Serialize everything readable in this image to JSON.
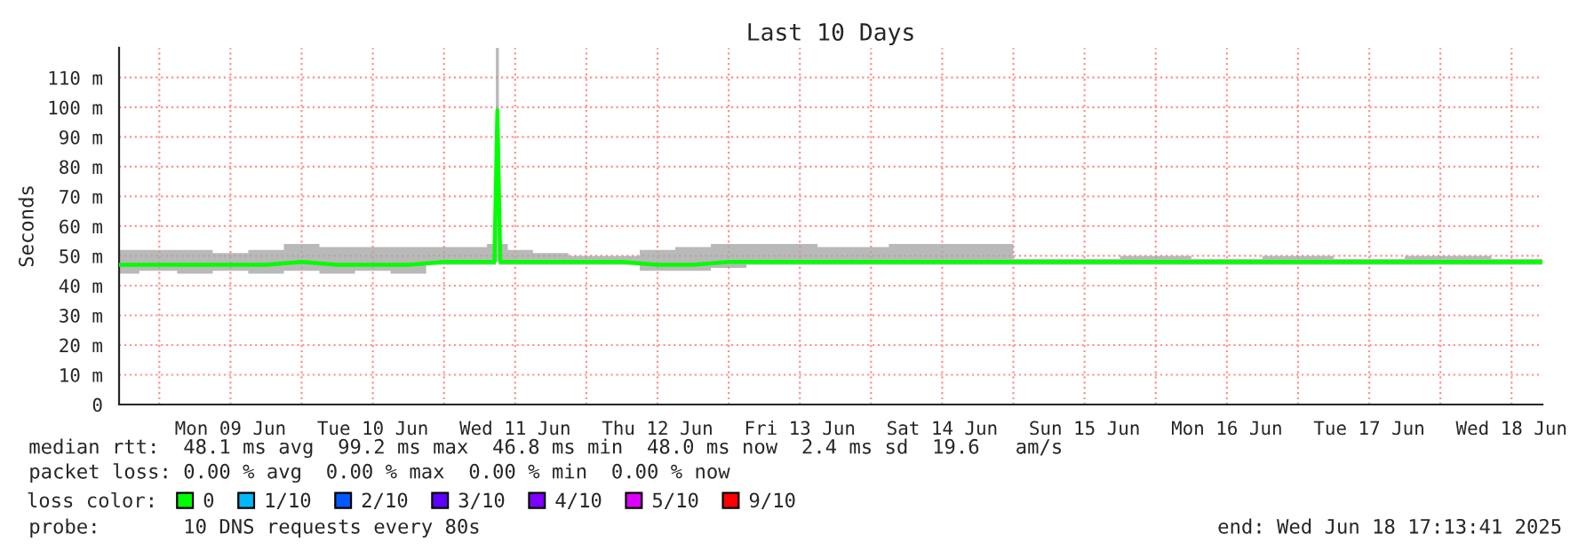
{
  "chart_data": {
    "type": "line",
    "title": "Last 10 Days",
    "ylabel": "Seconds",
    "x": [
      "2025-06-08T17:15",
      "2025-06-09T00:00",
      "2025-06-09T06:00",
      "2025-06-09T12:00",
      "2025-06-09T18:00",
      "2025-06-10T00:00",
      "2025-06-10T06:00",
      "2025-06-10T12:00",
      "2025-06-10T18:00",
      "2025-06-11T00:00",
      "2025-06-11T06:00",
      "2025-06-11T08:30",
      "2025-06-11T09:00",
      "2025-06-11T09:30",
      "2025-06-11T12:00",
      "2025-06-11T18:00",
      "2025-06-12T00:00",
      "2025-06-12T06:00",
      "2025-06-12T12:00",
      "2025-06-12T18:00",
      "2025-06-13T00:00",
      "2025-06-13T06:00",
      "2025-06-13T12:00",
      "2025-06-13T18:00",
      "2025-06-14T00:00",
      "2025-06-14T06:00",
      "2025-06-14T12:00",
      "2025-06-14T18:00",
      "2025-06-14T23:00",
      "2025-06-15T01:00",
      "2025-06-15T12:00",
      "2025-06-16T00:00",
      "2025-06-16T12:00",
      "2025-06-17T00:00",
      "2025-06-17T12:00",
      "2025-06-18T00:00",
      "2025-06-18T17:10"
    ],
    "series": [
      {
        "name": "0",
        "color": "#00ff00",
        "values": [
          47,
          47,
          47,
          47,
          47,
          48,
          47,
          47,
          47,
          48,
          48,
          48,
          99,
          48,
          48,
          48,
          48,
          48,
          47,
          47,
          48,
          48,
          48,
          48,
          48,
          48,
          48,
          48,
          48,
          48,
          48,
          48,
          48,
          48,
          48,
          48,
          48
        ],
        "lower": [
          44,
          45,
          44,
          45,
          44,
          45,
          44,
          45,
          44,
          47,
          47,
          47,
          48,
          47,
          47,
          47,
          47,
          47,
          45,
          45,
          46,
          47,
          47,
          47,
          47,
          47,
          47,
          47,
          47,
          47,
          47,
          47,
          47,
          47,
          47,
          47,
          47
        ],
        "upper": [
          52,
          52,
          52,
          51,
          52,
          54,
          53,
          53,
          53,
          53,
          53,
          54,
          120,
          54,
          52,
          51,
          50,
          50,
          52,
          53,
          54,
          54,
          54,
          53,
          53,
          54,
          54,
          54,
          54,
          49,
          49,
          50,
          49,
          50,
          49,
          50,
          49
        ]
      },
      {
        "name": "1/10",
        "color": "#00b8ff",
        "values": [
          null,
          null,
          null,
          null,
          null,
          null,
          null,
          null,
          null,
          null,
          null,
          null,
          null,
          null,
          null,
          null,
          null,
          null,
          null,
          null,
          null,
          null,
          null,
          null,
          null,
          null,
          null,
          null,
          null,
          null,
          null,
          null,
          null,
          null,
          null,
          null,
          null
        ]
      },
      {
        "name": "2/10",
        "color": "#0059ff",
        "values": [
          null,
          null,
          null,
          null,
          null,
          null,
          null,
          null,
          null,
          null,
          null,
          null,
          null,
          null,
          null,
          null,
          null,
          null,
          null,
          null,
          null,
          null,
          null,
          null,
          null,
          null,
          null,
          null,
          null,
          null,
          null,
          null,
          null,
          null,
          null,
          null,
          null
        ]
      },
      {
        "name": "3/10",
        "color": "#5e00ff",
        "values": [
          null,
          null,
          null,
          null,
          null,
          null,
          null,
          null,
          null,
          null,
          null,
          null,
          null,
          null,
          null,
          null,
          null,
          null,
          null,
          null,
          null,
          null,
          null,
          null,
          null,
          null,
          null,
          null,
          null,
          null,
          null,
          null,
          null,
          null,
          null,
          null,
          null
        ]
      },
      {
        "name": "4/10",
        "color": "#7e00ff",
        "values": [
          null,
          null,
          null,
          null,
          null,
          null,
          null,
          null,
          null,
          null,
          null,
          null,
          null,
          null,
          null,
          null,
          null,
          null,
          null,
          null,
          null,
          null,
          null,
          null,
          null,
          null,
          null,
          null,
          null,
          null,
          null,
          null,
          null,
          null,
          null,
          null,
          null
        ]
      },
      {
        "name": "5/10",
        "color": "#dd00ff",
        "values": [
          null,
          null,
          null,
          null,
          null,
          null,
          null,
          null,
          null,
          null,
          null,
          null,
          null,
          null,
          null,
          null,
          null,
          null,
          null,
          null,
          null,
          null,
          null,
          null,
          null,
          null,
          null,
          null,
          null,
          null,
          null,
          null,
          null,
          null,
          null,
          null,
          null
        ]
      },
      {
        "name": "9/10",
        "color": "#ff0000",
        "values": [
          null,
          null,
          null,
          null,
          null,
          null,
          null,
          null,
          null,
          null,
          null,
          null,
          null,
          null,
          null,
          null,
          null,
          null,
          null,
          null,
          null,
          null,
          null,
          null,
          null,
          null,
          null,
          null,
          null,
          null,
          null,
          null,
          null,
          null,
          null,
          null,
          null
        ]
      }
    ],
    "legend": "bottom",
    "legend_title": "loss color:",
    "grid": true,
    "xlim": [
      "2025-06-08T17:13",
      "2025-06-18T17:13"
    ],
    "xticks": [
      {
        "value": "2025-06-09T00:00",
        "label": null
      },
      {
        "value": "2025-06-09T12:00",
        "label": "Mon 09 Jun"
      },
      {
        "value": "2025-06-10T00:00",
        "label": null
      },
      {
        "value": "2025-06-10T12:00",
        "label": "Tue 10 Jun"
      },
      {
        "value": "2025-06-11T00:00",
        "label": null
      },
      {
        "value": "2025-06-11T12:00",
        "label": "Wed 11 Jun"
      },
      {
        "value": "2025-06-12T00:00",
        "label": null
      },
      {
        "value": "2025-06-12T12:00",
        "label": "Thu 12 Jun"
      },
      {
        "value": "2025-06-13T00:00",
        "label": null
      },
      {
        "value": "2025-06-13T12:00",
        "label": "Fri 13 Jun"
      },
      {
        "value": "2025-06-14T00:00",
        "label": null
      },
      {
        "value": "2025-06-14T12:00",
        "label": "Sat 14 Jun"
      },
      {
        "value": "2025-06-15T00:00",
        "label": null
      },
      {
        "value": "2025-06-15T12:00",
        "label": "Sun 15 Jun"
      },
      {
        "value": "2025-06-16T00:00",
        "label": null
      },
      {
        "value": "2025-06-16T12:00",
        "label": "Mon 16 Jun"
      },
      {
        "value": "2025-06-17T00:00",
        "label": null
      },
      {
        "value": "2025-06-17T12:00",
        "label": "Tue 17 Jun"
      },
      {
        "value": "2025-06-18T00:00",
        "label": null
      },
      {
        "value": "2025-06-18T12:00",
        "label": "Wed 18 Jun"
      }
    ],
    "ylim": [
      0,
      120
    ],
    "yticks": [
      {
        "value": 0,
        "label": "0"
      },
      {
        "value": 10,
        "label": "10 m"
      },
      {
        "value": 20,
        "label": "20 m"
      },
      {
        "value": 30,
        "label": "30 m"
      },
      {
        "value": 40,
        "label": "40 m"
      },
      {
        "value": 50,
        "label": "50 m"
      },
      {
        "value": 60,
        "label": "60 m"
      },
      {
        "value": 70,
        "label": "70 m"
      },
      {
        "value": 80,
        "label": "80 m"
      },
      {
        "value": 90,
        "label": "90 m"
      },
      {
        "value": 100,
        "label": "100 m"
      },
      {
        "value": 110,
        "label": "110 m"
      }
    ],
    "annotations": [
      "median rtt:  48.1 ms avg  99.2 ms max  46.8 ms min  48.0 ms now  2.4 ms sd  19.6   am/s",
      "packet loss: 0.00 % avg  0.00 % max  0.00 % min  0.00 % now",
      "probe:       10 DNS requests every 80s",
      "end: Wed Jun 18 17:13:41 2025"
    ]
  }
}
